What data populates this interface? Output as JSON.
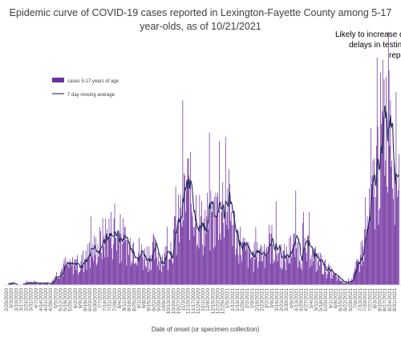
{
  "chart_data": {
    "type": "bar",
    "title_line1": "Epidemic curve of COVID-19 cases reported in Lexington-Fayette County among 5-17",
    "title_line2": "year-olds, as of 10/21/2021",
    "annotation_lines": [
      "Likely to increase d",
      "delays in testin",
      "rep"
    ],
    "xlabel": "Date of onset (or specimen collection)",
    "legend": {
      "position": "top-left",
      "bar_label": "cases 5-17 years of age",
      "line_label": "7 day moving average"
    },
    "colors": {
      "bars": "#7030a0",
      "line": "#1f2a5c"
    },
    "ylim": [
      0,
      100
    ],
    "start_date": "2020-02-25",
    "tick_labels": [
      "2/25/2020",
      "3/3/2020",
      "3/10/2020",
      "3/17/2020",
      "3/24/2020",
      "3/31/2020",
      "4/7/2020",
      "4/14/2020",
      "4/21/2020",
      "4/28/2020",
      "5/5/2020",
      "5/12/2020",
      "5/19/2020",
      "5/26/2020",
      "6/2/2020",
      "6/9/2020",
      "6/16/2020",
      "6/23/2020",
      "6/30/2020",
      "7/7/2020",
      "7/14/2020",
      "7/21/2020",
      "7/28/2020",
      "8/4/2020",
      "8/11/2020",
      "8/18/2020",
      "8/25/2020",
      "9/1/2020",
      "9/8/2020",
      "9/15/2020",
      "9/22/2020",
      "9/29/2020",
      "10/6/2020",
      "10/13/2020",
      "10/20/2020",
      "10/27/2020",
      "11/3/2020",
      "11/10/2020",
      "11/17/2020",
      "11/24/2020",
      "12/1/2020",
      "12/8/2020",
      "12/15/2020",
      "12/22/2020",
      "12/29/2020",
      "1/5/2021",
      "1/12/2021",
      "1/19/2021",
      "1/26/2021",
      "2/2/2021",
      "2/9/2021",
      "2/16/2021",
      "2/23/2021",
      "3/2/2021",
      "3/9/2021",
      "3/16/2021",
      "3/23/2021",
      "3/30/2021",
      "4/6/2021",
      "4/13/2021",
      "4/20/2021",
      "4/27/2021",
      "5/4/2021",
      "5/11/2021",
      "5/18/2021",
      "5/25/2021",
      "6/1/2021",
      "6/8/2021",
      "6/15/2021",
      "6/22/2021",
      "6/29/2021",
      "7/6/2021",
      "7/13/2021",
      "7/20/2021",
      "7/27/2021",
      "8/3/2021",
      "8/10/2021",
      "8/17/2021",
      "8/24/2021",
      "8/31/2021",
      "9/7/2021"
    ],
    "weekly_shape": [
      0,
      1,
      0,
      0,
      1,
      1,
      1,
      1,
      1,
      0,
      4,
      6,
      9,
      8,
      10,
      9,
      12,
      14,
      16,
      18,
      22,
      24,
      23,
      22,
      20,
      18,
      19,
      16,
      13,
      14,
      16,
      14,
      12,
      15,
      20,
      26,
      36,
      44,
      38,
      34,
      26,
      30,
      28,
      34,
      37,
      40,
      30,
      22,
      18,
      14,
      13,
      13,
      15,
      18,
      20,
      16,
      14,
      12,
      17,
      18,
      16,
      14,
      16,
      12,
      10,
      8,
      6,
      4,
      2,
      1,
      2,
      5,
      12,
      20,
      30,
      45,
      60,
      76,
      85,
      62,
      55
    ]
  }
}
